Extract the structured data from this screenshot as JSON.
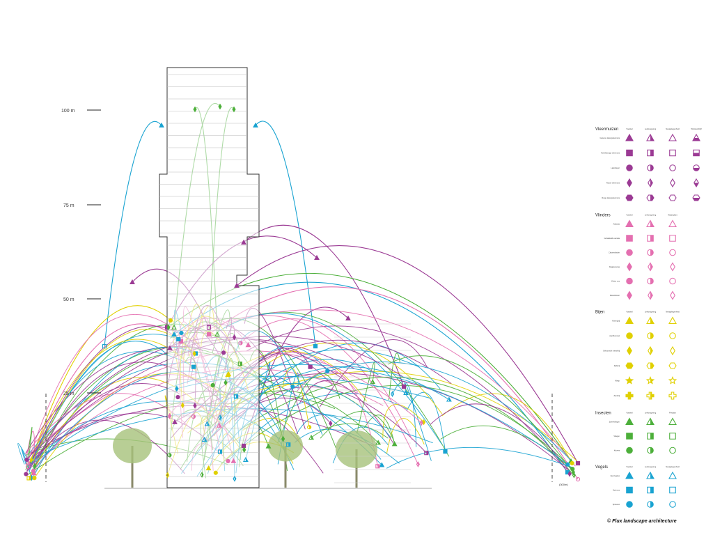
{
  "scale": {
    "labels": [
      "100 m",
      "75 m",
      "50 m",
      "25 m"
    ],
    "distance_label": "(300m)"
  },
  "colors": {
    "Vleermuizen": "#9b3a94",
    "Vlinders": "#e46fb0",
    "Bijen": "#e0d000",
    "Insecten": "#4caf3a",
    "Vogels": "#19a3d1",
    "tower": "#333333",
    "tree": "#a6c27a"
  },
  "legend": [
    {
      "group": "Vleermuizen",
      "columns": [
        "Voedsel",
        "Leefomgeving",
        "Nestgelegenheid",
        "Winterverblijf"
      ],
      "rows": [
        {
          "label": "Gewone dwergvleermuis",
          "icon": "triangle"
        },
        {
          "label": "Tweekleurige vleermuis",
          "icon": "square"
        },
        {
          "label": "Laatvlieger",
          "icon": "circle"
        },
        {
          "label": "Rosse vleermuis",
          "icon": "diamond"
        },
        {
          "label": "Ruige dwergvleermuis",
          "icon": "hexagon"
        }
      ]
    },
    {
      "group": "Vlinders",
      "columns": [
        "Voedsel",
        "Leefomgeving",
        "Waardplant"
      ],
      "rows": [
        {
          "label": "Atalanta",
          "icon": "triangle"
        },
        {
          "label": "Gehakkelde aurelia",
          "icon": "square"
        },
        {
          "label": "Citroenvlinder",
          "icon": "circle"
        },
        {
          "label": "Dagpauwoog",
          "icon": "diamond"
        },
        {
          "label": "Kleine vos",
          "icon": "circle"
        },
        {
          "label": "Distelvlinder",
          "icon": "diamond"
        }
      ]
    },
    {
      "group": "Bijen",
      "columns": [
        "Voedsel",
        "Leefomgeving",
        "Nestgelegenheid"
      ],
      "rows": [
        {
          "label": "Honingbij",
          "icon": "triangle"
        },
        {
          "label": "Aardhommel",
          "icon": "circle"
        },
        {
          "label": "Gehoornde metselbij",
          "icon": "diamond"
        },
        {
          "label": "Zijdebij",
          "icon": "hexagon"
        },
        {
          "label": "Wesp",
          "icon": "star"
        },
        {
          "label": "Zandbij",
          "icon": "cross"
        }
      ]
    },
    {
      "group": "Insecten",
      "columns": [
        "Voedsel",
        "Leefomgeving",
        "Predator"
      ],
      "rows": [
        {
          "label": "Zweefvliegen",
          "icon": "triangle"
        },
        {
          "label": "Vliegen",
          "icon": "square"
        },
        {
          "label": "Kevers",
          "icon": "circle"
        }
      ]
    },
    {
      "group": "Vogels",
      "columns": [
        "Voedsel",
        "Leefomgeving",
        "Nestgelegenheid"
      ],
      "rows": [
        {
          "label": "Gierzwaluw",
          "icon": "triangle"
        },
        {
          "label": "Huismus",
          "icon": "square"
        },
        {
          "label": "Spreeuw",
          "icon": "circle"
        }
      ]
    }
  ],
  "credit": "© Flux landscape architecture"
}
